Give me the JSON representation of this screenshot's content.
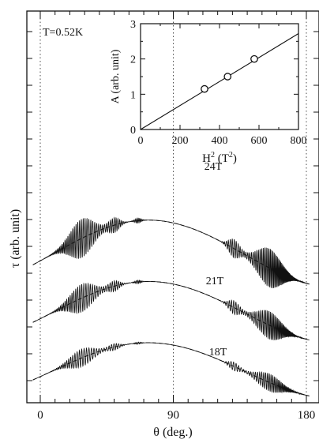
{
  "chart_data": [
    {
      "type": "line",
      "title": "",
      "annotation": "T=0.52K",
      "xlabel": "θ  (deg.)",
      "ylabel": "τ  (arb. unit)",
      "xlim": [
        -5,
        182
      ],
      "xticks": [
        0,
        90,
        180
      ],
      "xtick_labels": [
        "0",
        "90",
        "180"
      ],
      "grid_x": [
        0,
        90,
        180
      ],
      "y_ticks_labeled": false,
      "series": [
        {
          "name": "24T",
          "field_T": 24,
          "offset": 0.8,
          "amp": 1.0
        },
        {
          "name": "21T",
          "field_T": 21,
          "offset": 0.4,
          "amp": 0.72
        },
        {
          "name": "18T",
          "field_T": 18,
          "offset": 0.0,
          "amp": 0.45
        }
      ],
      "background_style": "dashed"
    },
    {
      "type": "scatter",
      "title": "",
      "xlabel": "H",
      "xlabel_sup": "2",
      "xlabel_units": " (T",
      "xlabel_units_sup": "2",
      "xlabel_close": ")",
      "ylabel": "A  (arb. unit)",
      "xlim": [
        0,
        800
      ],
      "ylim": [
        0,
        3
      ],
      "xticks": [
        0,
        200,
        400,
        600,
        800
      ],
      "yticks": [
        0,
        1,
        2,
        3
      ],
      "points": [
        {
          "x": 324,
          "y": 1.15
        },
        {
          "x": 441,
          "y": 1.5
        },
        {
          "x": 576,
          "y": 2.0
        }
      ],
      "fit": {
        "slope": 0.0034,
        "intercept": 0.0
      }
    }
  ]
}
